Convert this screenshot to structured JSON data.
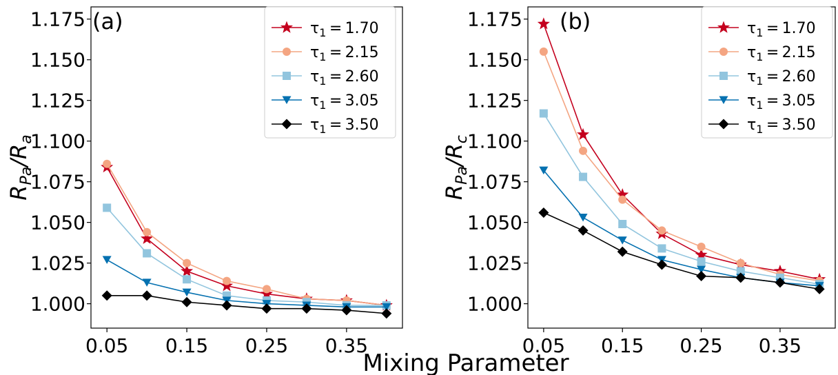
{
  "figure": {
    "xlabel": "Mixing Parameter"
  },
  "legend": {
    "entries": [
      "τ₁ = 1.70",
      "τ₁ = 2.15",
      "τ₁ = 2.60",
      "τ₁ = 3.05",
      "τ₁ = 3.50"
    ]
  },
  "series_style": [
    {
      "color": "#c4001e",
      "marker": "star"
    },
    {
      "color": "#f4a582",
      "marker": "circle"
    },
    {
      "color": "#92c5de",
      "marker": "square"
    },
    {
      "color": "#0571b0",
      "marker": "triangle-down"
    },
    {
      "color": "#000000",
      "marker": "diamond"
    }
  ],
  "chart_data": [
    {
      "type": "line",
      "panel": "(a)",
      "ylabel": "R_Pa/R_a",
      "xlim": [
        0.03,
        0.42
      ],
      "ylim": [
        0.985,
        1.1825
      ],
      "xticks": [
        "0.05",
        "0.15",
        "0.25",
        "0.35"
      ],
      "yticks": [
        "1.000",
        "1.025",
        "1.050",
        "1.075",
        "1.100",
        "1.125",
        "1.150",
        "1.175"
      ],
      "legend_position": "upper-right",
      "grid": false,
      "x": [
        0.05,
        0.1,
        0.15,
        0.2,
        0.25,
        0.3,
        0.35,
        0.4
      ],
      "series": [
        {
          "name": "τ₁ = 1.70",
          "values": [
            1.084,
            1.04,
            1.02,
            1.011,
            1.006,
            1.003,
            1.002,
            0.999
          ]
        },
        {
          "name": "τ₁ = 2.15",
          "values": [
            1.086,
            1.044,
            1.025,
            1.014,
            1.009,
            1.003,
            1.002,
            0.999
          ]
        },
        {
          "name": "τ₁ = 2.60",
          "values": [
            1.059,
            1.031,
            1.015,
            1.005,
            1.002,
            1.001,
            0.999,
            0.999
          ]
        },
        {
          "name": "τ₁ = 3.05",
          "values": [
            1.027,
            1.013,
            1.007,
            1.002,
            1.0,
            0.999,
            0.998,
            0.998
          ]
        },
        {
          "name": "τ₁ = 3.50",
          "values": [
            1.005,
            1.005,
            1.001,
            0.999,
            0.997,
            0.997,
            0.996,
            0.994
          ]
        }
      ]
    },
    {
      "type": "line",
      "panel": "(b)",
      "ylabel": "R_Pa/R_c",
      "xlim": [
        0.03,
        0.42
      ],
      "ylim": [
        0.985,
        1.1825
      ],
      "xticks": [
        "0.05",
        "0.15",
        "0.25",
        "0.35"
      ],
      "yticks": [
        "1.000",
        "1.025",
        "1.050",
        "1.075",
        "1.100",
        "1.125",
        "1.150",
        "1.175"
      ],
      "legend_position": "upper-right",
      "grid": false,
      "x": [
        0.05,
        0.1,
        0.15,
        0.2,
        0.25,
        0.3,
        0.35,
        0.4
      ],
      "series": [
        {
          "name": "τ₁ = 1.70",
          "values": [
            1.172,
            1.104,
            1.067,
            1.043,
            1.03,
            1.024,
            1.02,
            1.015
          ]
        },
        {
          "name": "τ₁ = 2.15",
          "values": [
            1.155,
            1.094,
            1.064,
            1.045,
            1.035,
            1.025,
            1.018,
            1.014
          ]
        },
        {
          "name": "τ₁ = 2.60",
          "values": [
            1.117,
            1.078,
            1.049,
            1.034,
            1.026,
            1.02,
            1.016,
            1.012
          ]
        },
        {
          "name": "τ₁ = 3.05",
          "values": [
            1.082,
            1.053,
            1.039,
            1.027,
            1.021,
            1.016,
            1.013,
            1.011
          ]
        },
        {
          "name": "τ₁ = 3.50",
          "values": [
            1.056,
            1.045,
            1.032,
            1.024,
            1.017,
            1.016,
            1.013,
            1.009
          ]
        }
      ]
    }
  ]
}
